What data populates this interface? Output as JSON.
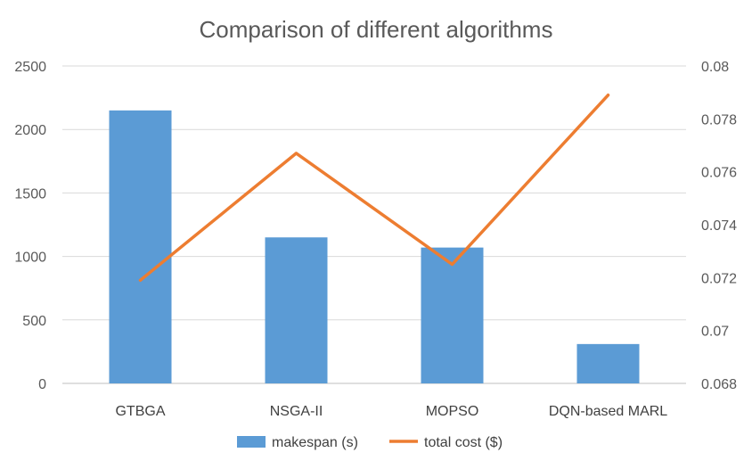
{
  "chart_data": {
    "type": "bar",
    "title": "Comparison of different algorithms",
    "categories": [
      "GTBGA",
      "NSGA-II",
      "MOPSO",
      "DQN-based MARL"
    ],
    "series": [
      {
        "name": "makespan (s)",
        "type": "bar",
        "axis": "left",
        "color": "#5b9bd5",
        "values": [
          2150,
          1150,
          1070,
          310
        ]
      },
      {
        "name": "total cost ($)",
        "type": "line",
        "axis": "right",
        "color": "#ed7d31",
        "values": [
          0.0719,
          0.0767,
          0.0725,
          0.0789
        ]
      }
    ],
    "y_left": {
      "min": 0,
      "max": 2500,
      "ticks": [
        "0",
        "500",
        "1000",
        "1500",
        "2000",
        "2500"
      ]
    },
    "y_right": {
      "min": 0.068,
      "max": 0.08,
      "ticks": [
        "0.068",
        "0.07",
        "0.072",
        "0.074",
        "0.076",
        "0.078",
        "0.08"
      ]
    },
    "grid": true,
    "legend_position": "bottom"
  }
}
